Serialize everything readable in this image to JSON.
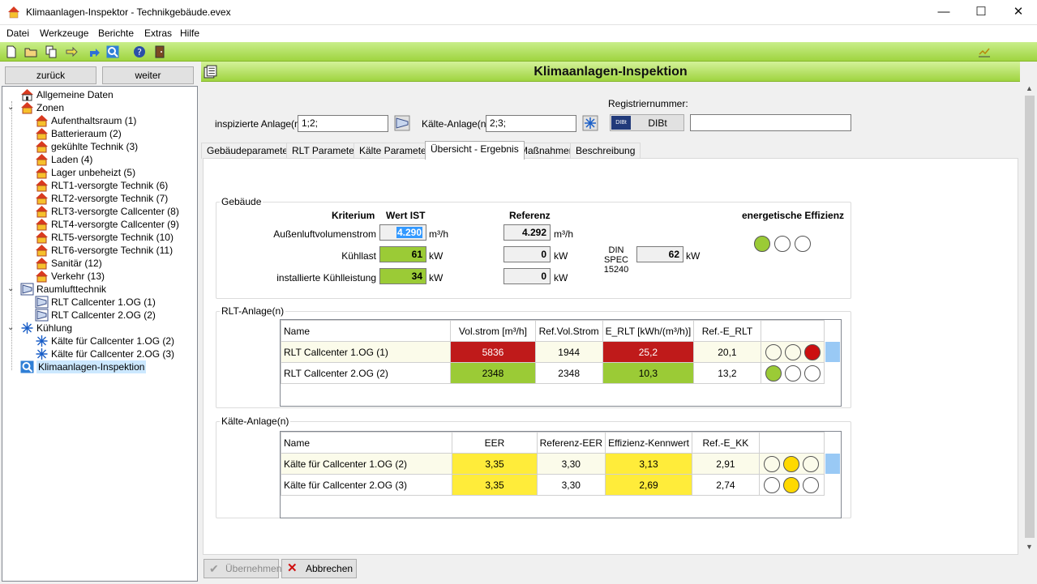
{
  "window": {
    "title": "Klimaanlagen-Inspektor - Technikgebäude.evex",
    "minimize": "—",
    "maximize": "☐",
    "close": "✕"
  },
  "menu": [
    "Datei",
    "Werkzeuge",
    "Berichte",
    "Extras",
    "Hilfe"
  ],
  "nav": {
    "back": "zurück",
    "forward": "weiter"
  },
  "tree": [
    {
      "label": "Allgemeine Daten",
      "icon": "home-icon",
      "level": 0
    },
    {
      "label": "Zonen",
      "icon": "zone-icon",
      "level": 0,
      "expanded": true
    },
    {
      "label": "Aufenthaltsraum (1)",
      "icon": "zone-icon",
      "level": 1
    },
    {
      "label": "Batterieraum (2)",
      "icon": "zone-icon",
      "level": 1
    },
    {
      "label": "gekühlte Technik (3)",
      "icon": "zone-icon",
      "level": 1
    },
    {
      "label": "Laden (4)",
      "icon": "zone-icon",
      "level": 1
    },
    {
      "label": "Lager unbeheizt (5)",
      "icon": "zone-icon",
      "level": 1
    },
    {
      "label": "RLT1-versorgte Technik (6)",
      "icon": "zone-icon",
      "level": 1
    },
    {
      "label": "RLT2-versorgte Technik (7)",
      "icon": "zone-icon",
      "level": 1
    },
    {
      "label": "RLT3-versorgte Callcenter (8)",
      "icon": "zone-icon",
      "level": 1
    },
    {
      "label": "RLT4-versorgte Callcenter (9)",
      "icon": "zone-icon",
      "level": 1
    },
    {
      "label": "RLT5-versorgte Technik (10)",
      "icon": "zone-icon",
      "level": 1
    },
    {
      "label": "RLT6-versorgte Technik (11)",
      "icon": "zone-icon",
      "level": 1
    },
    {
      "label": "Sanitär (12)",
      "icon": "zone-icon",
      "level": 1
    },
    {
      "label": "Verkehr (13)",
      "icon": "zone-icon",
      "level": 1
    },
    {
      "label": "Raumlufttechnik",
      "icon": "rlt-icon",
      "level": 0,
      "expanded": true
    },
    {
      "label": "RLT Callcenter 1.OG (1)",
      "icon": "rlt-icon",
      "level": 1
    },
    {
      "label": "RLT Callcenter 2.OG (2)",
      "icon": "rlt-icon",
      "level": 1
    },
    {
      "label": "Kühlung",
      "icon": "snowflake-icon",
      "level": 0,
      "expanded": true
    },
    {
      "label": "Kälte für Callcenter 1.OG (2)",
      "icon": "snowflake-icon",
      "level": 1
    },
    {
      "label": "Kälte für Callcenter 2.OG (3)",
      "icon": "snowflake-icon",
      "level": 1
    },
    {
      "label": "Klimaanlagen-Inspektion",
      "icon": "inspection-icon",
      "level": 0,
      "selected": true
    }
  ],
  "header": {
    "title": "Klimaanlagen-Inspektion"
  },
  "fields": {
    "anlage_label": "inspizierte Anlage(n)",
    "anlage_value": "1;2;",
    "kaelte_label": "Kälte-Anlage(n)",
    "kaelte_value": "2;3;",
    "reg_label": "Registriernummer:",
    "dibt_button": "DIBt",
    "dibt_logo": "DIBt",
    "reg_value": ""
  },
  "tabs": [
    "Gebäudeparameter",
    "RLT Parameter",
    "Kälte Parameter",
    "Übersicht - Ergebnis",
    "Maßnahmen",
    "Beschreibung"
  ],
  "gebaeude": {
    "title": "Gebäude",
    "col_kriterium": "Kriterium",
    "col_ist": "Wert IST",
    "col_ref": "Referenz",
    "col_eff": "energetische Effizienz",
    "rows": [
      {
        "label": "Außenluftvolumenstrom",
        "ist": "4.290",
        "unit_ist": "m³/h",
        "ref": "4.292",
        "unit_ref": "m³/h"
      },
      {
        "label": "Kühllast",
        "ist": "61",
        "unit_ist": "kW",
        "ref": "0",
        "unit_ref": "kW"
      },
      {
        "label": "installierte Kühlleistung",
        "ist": "34",
        "unit_ist": "kW",
        "ref": "0",
        "unit_ref": "kW"
      }
    ],
    "din_label1": "DIN SPEC",
    "din_label2": "15240",
    "din_value": "62",
    "din_unit": "kW"
  },
  "rlt": {
    "title": "RLT-Anlage(n)",
    "headers": [
      "Name",
      "Vol.strom [m³/h]",
      "Ref.Vol.Strom",
      "E_RLT [kWh/(m³/h)]",
      "Ref.-E_RLT"
    ],
    "rows": [
      {
        "name": "RLT Callcenter 1.OG (1)",
        "vol": "5836",
        "ref_vol": "1944",
        "e_rlt": "25,2",
        "ref_e": "20,1",
        "rating": "red"
      },
      {
        "name": "RLT Callcenter 2.OG (2)",
        "vol": "2348",
        "ref_vol": "2348",
        "e_rlt": "10,3",
        "ref_e": "13,2",
        "rating": "green"
      }
    ]
  },
  "kaelte": {
    "title": "Kälte-Anlage(n)",
    "headers": [
      "Name",
      "EER",
      "Referenz-EER",
      "Effizienz-Kennwert",
      "Ref.-E_KK"
    ],
    "rows": [
      {
        "name": "Kälte für Callcenter 1.OG (2)",
        "eer": "3,35",
        "ref_eer": "3,30",
        "kennwert": "3,13",
        "ref_e": "2,91",
        "rating": "yellow"
      },
      {
        "name": "Kälte für Callcenter 2.OG (3)",
        "eer": "3,35",
        "ref_eer": "3,30",
        "kennwert": "2,69",
        "ref_e": "2,74",
        "rating": "yellow"
      }
    ]
  },
  "buttons": {
    "apply": "Übernehmen",
    "cancel": "Abbrechen"
  },
  "colors": {
    "green": "#9bcb36",
    "red": "#bf1a1a",
    "yellow": "#ffec3a",
    "toolbar": "#a6d84a"
  }
}
